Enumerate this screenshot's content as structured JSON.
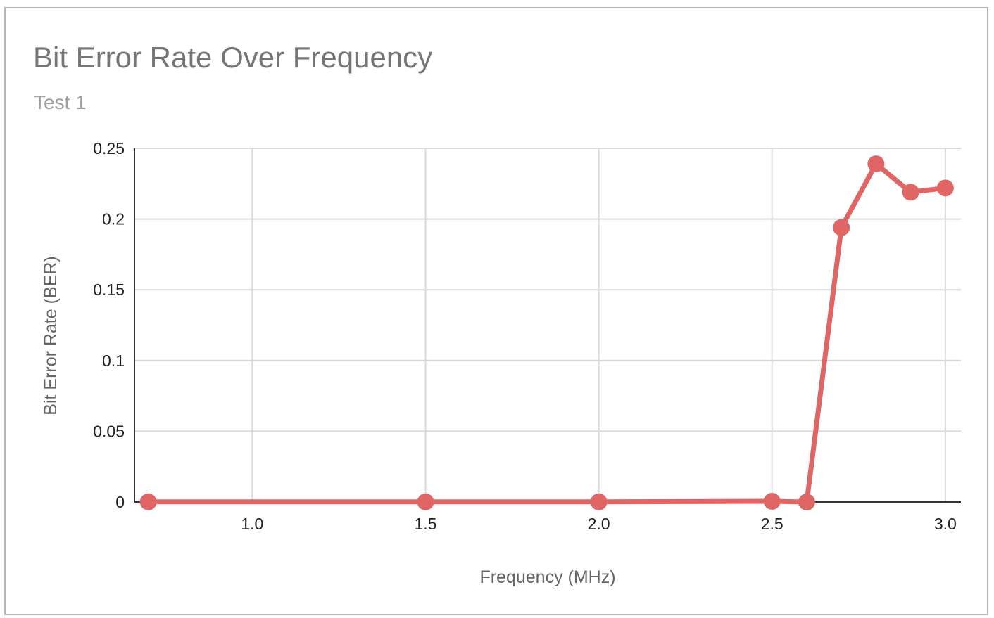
{
  "chart_data": {
    "type": "line",
    "title": "Bit Error Rate Over Frequency",
    "subtitle": "Test 1",
    "xlabel": "Frequency (MHz)",
    "ylabel": "Bit Error Rate (BER)",
    "xlim": [
      0.66,
      3.045
    ],
    "ylim": [
      0,
      0.25
    ],
    "x_ticks": [
      1.0,
      1.5,
      2.0,
      2.5,
      3.0
    ],
    "x_tick_labels": [
      "1.0",
      "1.5",
      "2.0",
      "2.5",
      "3.0"
    ],
    "y_ticks": [
      0,
      0.05,
      0.1,
      0.15,
      0.2,
      0.25
    ],
    "y_tick_labels": [
      "0",
      "0.05",
      "0.1",
      "0.15",
      "0.2",
      "0.25"
    ],
    "grid": true,
    "legend": "none",
    "series": [
      {
        "color": "#e06666",
        "x": [
          0.7,
          1.5,
          2.0,
          2.5,
          2.6,
          2.7,
          2.8,
          2.9,
          3.0
        ],
        "y": [
          0.0001,
          0.0001,
          0.0001,
          0.0005,
          0.0,
          0.194,
          0.239,
          0.219,
          0.222
        ]
      }
    ]
  }
}
